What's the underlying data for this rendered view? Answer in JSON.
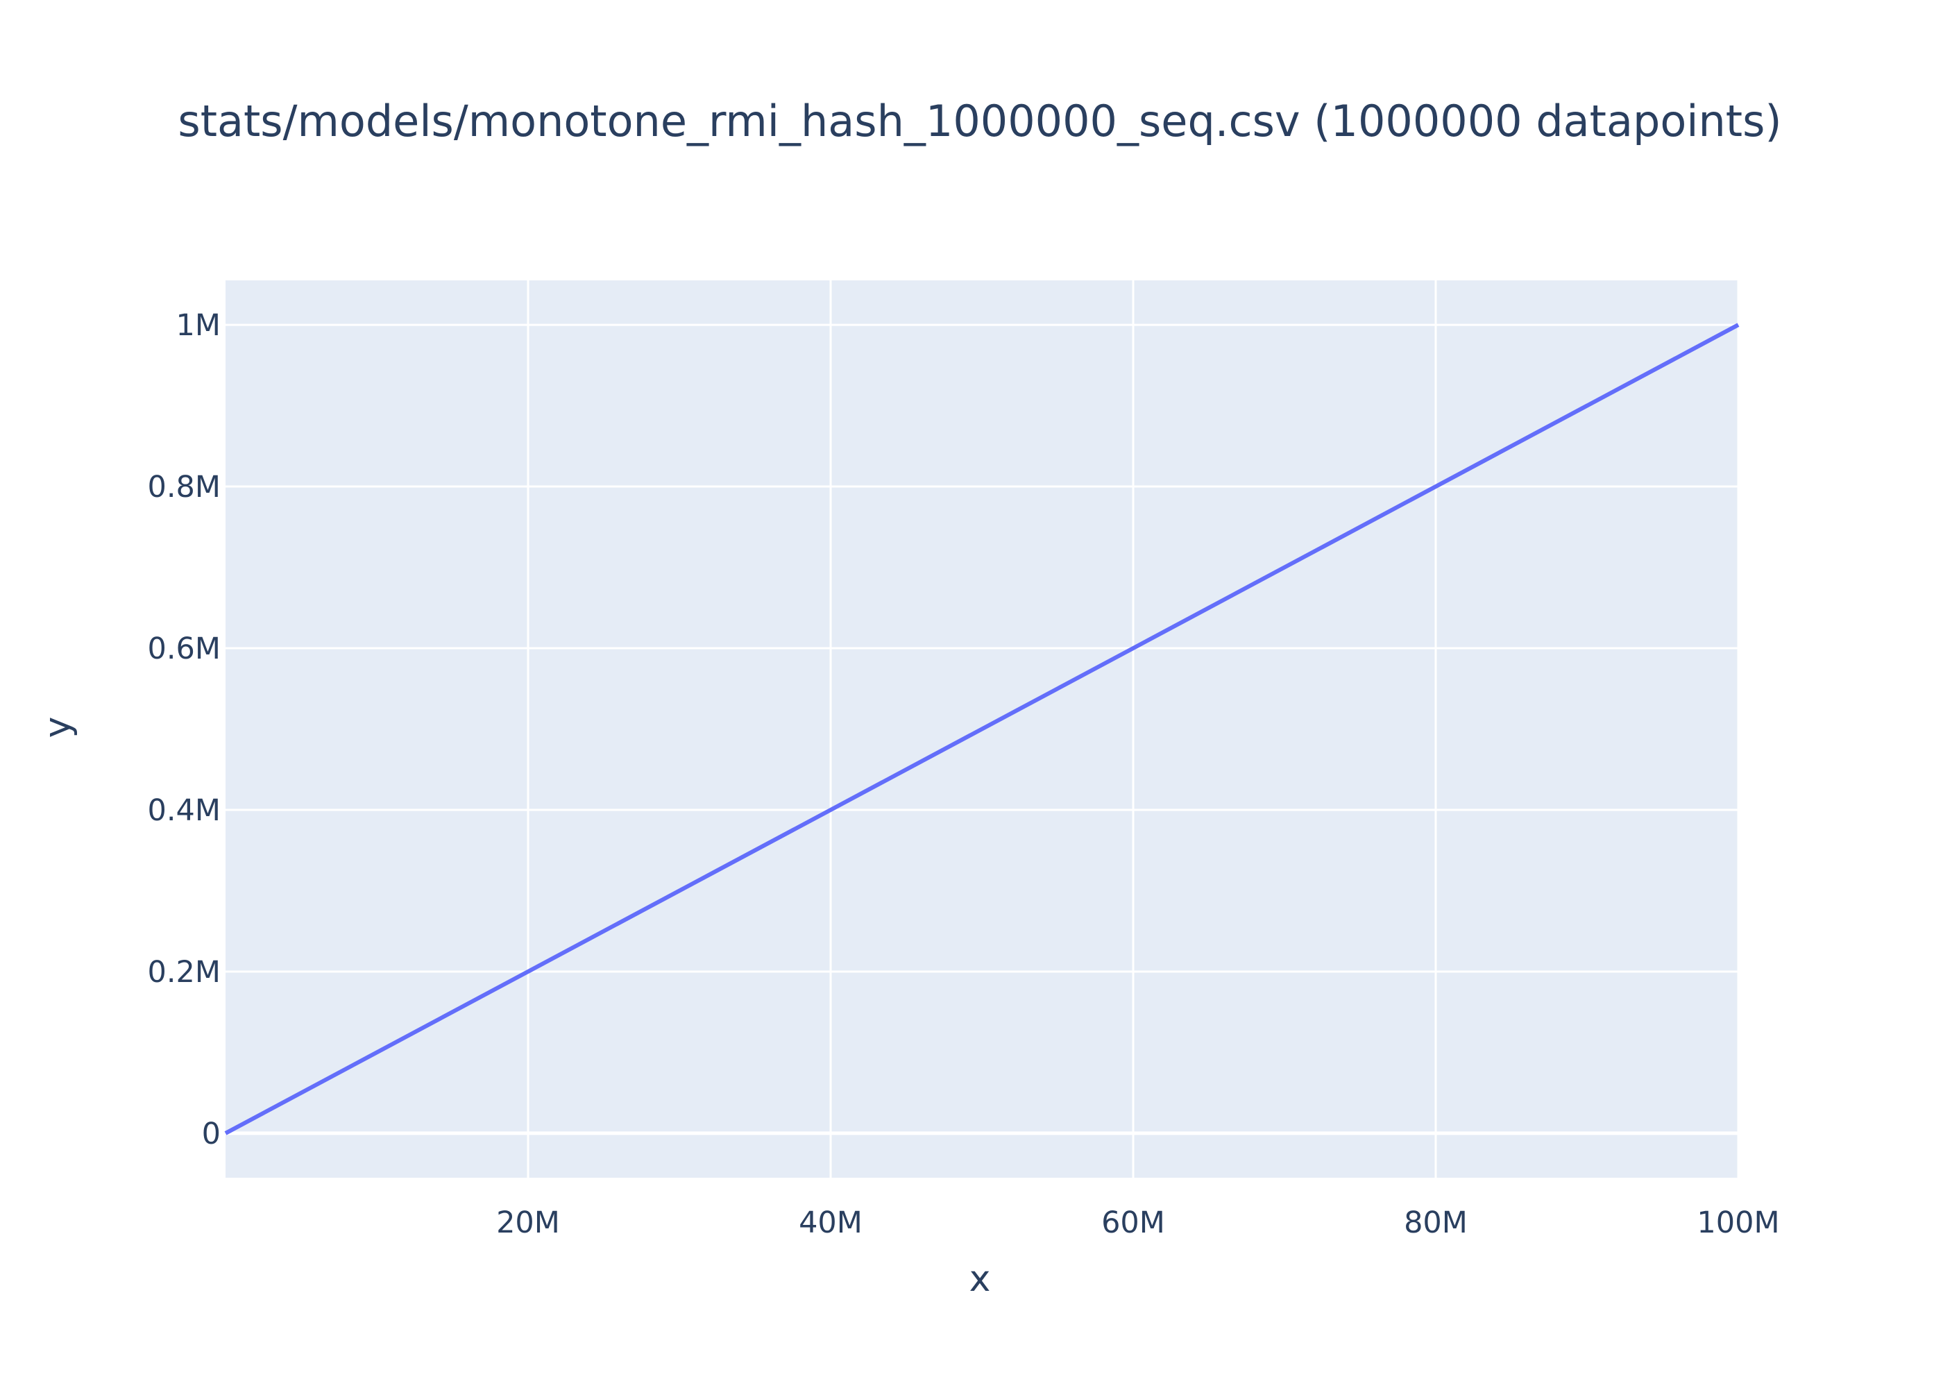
{
  "chart_data": {
    "type": "line",
    "title": "stats/models/monotone_rmi_hash_1000000_seq.csv (1000000 datapoints)",
    "xlabel": "x",
    "ylabel": "y",
    "xlim": [
      0,
      100000000
    ],
    "ylim": [
      -55000,
      1055000
    ],
    "x_ticks": [
      {
        "value": 20000000,
        "label": "20M"
      },
      {
        "value": 40000000,
        "label": "40M"
      },
      {
        "value": 60000000,
        "label": "60M"
      },
      {
        "value": 80000000,
        "label": "80M"
      },
      {
        "value": 100000000,
        "label": "100M"
      }
    ],
    "y_ticks": [
      {
        "value": 0,
        "label": "0"
      },
      {
        "value": 200000,
        "label": "0.2M"
      },
      {
        "value": 400000,
        "label": "0.4M"
      },
      {
        "value": 600000,
        "label": "0.6M"
      },
      {
        "value": 800000,
        "label": "0.8M"
      },
      {
        "value": 1000000,
        "label": "1M"
      }
    ],
    "grid": true,
    "series": [
      {
        "x": [
          0,
          100000000
        ],
        "y": [
          0,
          1000000
        ],
        "color": "#636efa"
      }
    ]
  },
  "colors": {
    "plot_background": "#e5ecf6",
    "grid": "#ffffff",
    "text": "#2a3f5f",
    "line": "#636efa"
  }
}
